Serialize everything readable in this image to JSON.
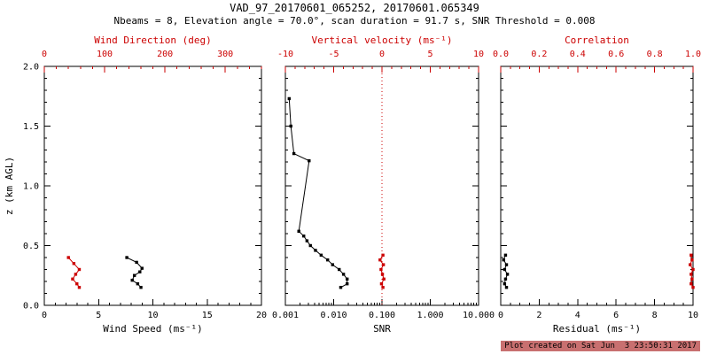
{
  "header": {
    "title": "VAD_97_20170601_065252, 20170601.065349",
    "subtitle": "Nbeams = 8, Elevation angle = 70.0°, scan duration = 91.7 s, SNR Threshold = 0.008"
  },
  "footer": {
    "created": "Plot created on Sat Jun  3 23:50:31 2017"
  },
  "colors": {
    "axis": "#000000",
    "secondary_axis": "#cc0000",
    "background": "#ffffff"
  },
  "chart_data": [
    {
      "type": "line",
      "name": "wind-panel",
      "y_axis": {
        "label": "z (km AGL)",
        "min": 0,
        "max": 2,
        "minor_step": 0.1,
        "show_labels": true,
        "ticks": [
          {
            "v": 0,
            "label": "0.0"
          },
          {
            "v": 0.5,
            "label": "0.5"
          },
          {
            "v": 1.0,
            "label": "1.0"
          },
          {
            "v": 1.5,
            "label": "1.5"
          },
          {
            "v": 2.0,
            "label": "2.0"
          }
        ]
      },
      "x_bottom": {
        "label": "Wind Speed (ms⁻¹)",
        "scale": "linear",
        "min": 0,
        "max": 20,
        "minor_step": 1,
        "color": "#000000",
        "ticks": [
          {
            "v": 0,
            "label": "0"
          },
          {
            "v": 5,
            "label": "5"
          },
          {
            "v": 10,
            "label": "10"
          },
          {
            "v": 15,
            "label": "15"
          },
          {
            "v": 20,
            "label": "20"
          }
        ]
      },
      "x_top": {
        "label": "Wind Direction (deg)",
        "scale": "linear",
        "min": 0,
        "max": 360,
        "minor_step": 20,
        "color": "#cc0000",
        "ticks": [
          {
            "v": 0,
            "label": "0"
          },
          {
            "v": 100,
            "label": "100"
          },
          {
            "v": 200,
            "label": "200"
          },
          {
            "v": 300,
            "label": "300"
          }
        ]
      },
      "series": [
        {
          "name": "wind_speed",
          "axis": "bottom",
          "color": "#000000",
          "points": [
            [
              7.6,
              0.4
            ],
            [
              8.5,
              0.36
            ],
            [
              9.0,
              0.31
            ],
            [
              8.8,
              0.28
            ],
            [
              8.3,
              0.25
            ],
            [
              8.1,
              0.21
            ],
            [
              8.6,
              0.18
            ],
            [
              8.9,
              0.15
            ]
          ]
        },
        {
          "name": "wind_direction",
          "axis": "top",
          "color": "#cc0000",
          "points": [
            [
              40,
              0.4
            ],
            [
              49,
              0.35
            ],
            [
              58,
              0.3
            ],
            [
              52,
              0.26
            ],
            [
              47,
              0.22
            ],
            [
              54,
              0.18
            ],
            [
              58,
              0.15
            ]
          ]
        }
      ]
    },
    {
      "type": "line",
      "name": "snr-panel",
      "y_axis": {
        "label": "",
        "min": 0,
        "max": 2,
        "minor_step": 0.1,
        "show_labels": false,
        "ticks": [
          {
            "v": 0,
            "label": "0.0"
          },
          {
            "v": 0.5,
            "label": "0.5"
          },
          {
            "v": 1.0,
            "label": "1.0"
          },
          {
            "v": 1.5,
            "label": "1.5"
          },
          {
            "v": 2.0,
            "label": "2.0"
          }
        ]
      },
      "x_bottom": {
        "label": "SNR",
        "scale": "log",
        "min": 0.001,
        "max": 10,
        "color": "#000000",
        "ticks": [
          {
            "v": 0.001,
            "label": "0.001"
          },
          {
            "v": 0.01,
            "label": "0.010"
          },
          {
            "v": 0.1,
            "label": "0.100"
          },
          {
            "v": 1,
            "label": "1.000"
          },
          {
            "v": 10,
            "label": "10.000"
          }
        ]
      },
      "x_top": {
        "label": "Vertical velocity (ms⁻¹)",
        "scale": "linear",
        "min": -10,
        "max": 10,
        "minor_step": 1,
        "color": "#cc0000",
        "ticks": [
          {
            "v": -10,
            "label": "-10"
          },
          {
            "v": -5,
            "label": "-5"
          },
          {
            "v": 0,
            "label": "0"
          },
          {
            "v": 5,
            "label": "5"
          },
          {
            "v": 10,
            "label": "10"
          }
        ]
      },
      "reference_line": {
        "axis": "top",
        "value": 0,
        "style": "dotted",
        "color": "#cc0000"
      },
      "series": [
        {
          "name": "snr",
          "axis": "bottom",
          "color": "#000000",
          "points": [
            [
              0.0012,
              1.73
            ],
            [
              0.0013,
              1.5
            ],
            [
              0.0015,
              1.27
            ],
            [
              0.0031,
              1.21
            ],
            [
              0.0019,
              0.62
            ],
            [
              0.0024,
              0.58
            ],
            [
              0.0028,
              0.54
            ],
            [
              0.0033,
              0.5
            ],
            [
              0.0042,
              0.46
            ],
            [
              0.0055,
              0.42
            ],
            [
              0.0075,
              0.38
            ],
            [
              0.0095,
              0.34
            ],
            [
              0.013,
              0.3
            ],
            [
              0.016,
              0.26
            ],
            [
              0.019,
              0.22
            ],
            [
              0.019,
              0.18
            ],
            [
              0.014,
              0.15
            ]
          ]
        },
        {
          "name": "vertical_velocity",
          "axis": "top",
          "color": "#cc0000",
          "points": [
            [
              0.1,
              0.42
            ],
            [
              -0.2,
              0.38
            ],
            [
              0.15,
              0.34
            ],
            [
              -0.1,
              0.3
            ],
            [
              0.05,
              0.26
            ],
            [
              0.2,
              0.22
            ],
            [
              -0.05,
              0.18
            ],
            [
              0.1,
              0.15
            ]
          ]
        }
      ]
    },
    {
      "type": "line",
      "name": "residual-panel",
      "y_axis": {
        "label": "",
        "min": 0,
        "max": 2,
        "minor_step": 0.1,
        "show_labels": false,
        "ticks": [
          {
            "v": 0,
            "label": "0.0"
          },
          {
            "v": 0.5,
            "label": "0.5"
          },
          {
            "v": 1.0,
            "label": "1.0"
          },
          {
            "v": 1.5,
            "label": "1.5"
          },
          {
            "v": 2.0,
            "label": "2.0"
          }
        ]
      },
      "x_bottom": {
        "label": "Residual (ms⁻¹)",
        "scale": "linear",
        "min": 0,
        "max": 10,
        "minor_step": 0.5,
        "color": "#000000",
        "ticks": [
          {
            "v": 0,
            "label": "0"
          },
          {
            "v": 2,
            "label": "2"
          },
          {
            "v": 4,
            "label": "4"
          },
          {
            "v": 6,
            "label": "6"
          },
          {
            "v": 8,
            "label": "8"
          },
          {
            "v": 10,
            "label": "10"
          }
        ]
      },
      "x_top": {
        "label": "Correlation",
        "scale": "linear",
        "min": 0,
        "max": 1,
        "minor_step": 0.05,
        "color": "#cc0000",
        "ticks": [
          {
            "v": 0,
            "label": "0.0"
          },
          {
            "v": 0.2,
            "label": "0.2"
          },
          {
            "v": 0.4,
            "label": "0.4"
          },
          {
            "v": 0.6,
            "label": "0.6"
          },
          {
            "v": 0.8,
            "label": "0.8"
          },
          {
            "v": 1.0,
            "label": "1.0"
          }
        ]
      },
      "series": [
        {
          "name": "residual",
          "axis": "bottom",
          "color": "#000000",
          "points": [
            [
              0.25,
              0.42
            ],
            [
              0.15,
              0.38
            ],
            [
              0.3,
              0.34
            ],
            [
              0.2,
              0.3
            ],
            [
              0.35,
              0.26
            ],
            [
              0.25,
              0.22
            ],
            [
              0.2,
              0.18
            ],
            [
              0.3,
              0.15
            ]
          ]
        },
        {
          "name": "correlation",
          "axis": "top",
          "color": "#cc0000",
          "points": [
            [
              0.99,
              0.42
            ],
            [
              0.995,
              0.38
            ],
            [
              0.985,
              0.34
            ],
            [
              1.0,
              0.3
            ],
            [
              0.99,
              0.26
            ],
            [
              0.995,
              0.22
            ],
            [
              0.99,
              0.18
            ],
            [
              1.0,
              0.15
            ]
          ]
        }
      ]
    }
  ]
}
